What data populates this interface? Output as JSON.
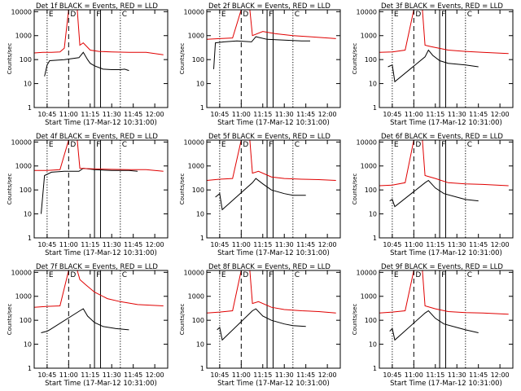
{
  "figure": {
    "ylabel": "Counts/sec",
    "xlabel": "Start Time (17-Mar-12 10:31:00)",
    "title_suffix": "BLACK = Events, RED = LLD",
    "x_ticks": [
      "10:45",
      "11:00",
      "11:15",
      "11:30",
      "11:45",
      "12:00"
    ],
    "y_ticks": [
      "1",
      "10",
      "100",
      "1000",
      "10000"
    ],
    "markers": [
      {
        "label": "E",
        "style": "dotted",
        "t": 10.75
      },
      {
        "label": "D",
        "style": "dashed",
        "t": 11.0
      },
      {
        "label": "F",
        "style": "solid",
        "t": 11.3
      },
      {
        "label": "C",
        "style": "dotted",
        "t": 11.6
      }
    ],
    "colors": {
      "events": "#000000",
      "lld": "#e00000",
      "axis": "#000000"
    }
  },
  "chart_data": [
    {
      "type": "line",
      "title": "Det 1f BLACK = Events, RED = LLD",
      "xlabel": "Start Time (17-Mar-12 10:31:00)",
      "ylabel": "Counts/sec",
      "yscale": "log",
      "ylim": [
        1,
        12000
      ],
      "series": [
        {
          "name": "Events",
          "color": "#000000",
          "points": [
            [
              10.72,
              20
            ],
            [
              10.75,
              60
            ],
            [
              10.78,
              90
            ],
            [
              10.95,
              100
            ],
            [
              11.12,
              120
            ],
            [
              11.17,
              200
            ],
            [
              11.22,
              100
            ],
            [
              11.25,
              70
            ],
            [
              11.3,
              55
            ],
            [
              11.4,
              40
            ],
            [
              11.5,
              38
            ],
            [
              11.6,
              38
            ],
            [
              11.65,
              40
            ],
            [
              11.7,
              35
            ]
          ]
        },
        {
          "name": "LLD",
          "color": "#e00000",
          "points": [
            [
              10.6,
              190
            ],
            [
              10.7,
              200
            ],
            [
              10.8,
              200
            ],
            [
              10.9,
              210
            ],
            [
              10.95,
              300
            ],
            [
              11.0,
              12000
            ],
            [
              11.1,
              12000
            ],
            [
              11.13,
              400
            ],
            [
              11.17,
              500
            ],
            [
              11.25,
              250
            ],
            [
              11.35,
              220
            ],
            [
              11.5,
              210
            ],
            [
              11.7,
              200
            ],
            [
              11.9,
              200
            ],
            [
              12.1,
              160
            ]
          ]
        }
      ]
    },
    {
      "type": "line",
      "title": "Det 2f BLACK = Events, RED = LLD",
      "xlabel": "Start Time (17-Mar-12 10:31:00)",
      "ylabel": "Counts/sec",
      "yscale": "log",
      "ylim": [
        1,
        12000
      ],
      "series": [
        {
          "name": "Events",
          "color": "#000000",
          "points": [
            [
              10.68,
              40
            ],
            [
              10.7,
              500
            ],
            [
              10.8,
              550
            ],
            [
              10.95,
              600
            ],
            [
              11.12,
              550
            ],
            [
              11.17,
              900
            ],
            [
              11.3,
              700
            ],
            [
              11.5,
              650
            ],
            [
              11.7,
              600
            ],
            [
              11.8,
              600
            ]
          ]
        },
        {
          "name": "LLD",
          "color": "#e00000",
          "points": [
            [
              10.6,
              700
            ],
            [
              10.75,
              750
            ],
            [
              10.9,
              800
            ],
            [
              11.0,
              12000
            ],
            [
              11.1,
              12000
            ],
            [
              11.13,
              1000
            ],
            [
              11.25,
              1500
            ],
            [
              11.4,
              1200
            ],
            [
              11.6,
              1000
            ],
            [
              11.8,
              900
            ],
            [
              12.1,
              750
            ]
          ]
        }
      ]
    },
    {
      "type": "line",
      "title": "Det 3f BLACK = Events, RED = LLD",
      "xlabel": "Start Time (17-Mar-12 10:31:00)",
      "ylabel": "Counts/sec",
      "yscale": "log",
      "ylim": [
        1,
        12000
      ],
      "series": [
        {
          "name": "Events",
          "color": "#000000",
          "points": [
            [
              10.7,
              50
            ],
            [
              10.75,
              60
            ],
            [
              10.78,
              12
            ],
            [
              11.13,
              130
            ],
            [
              11.17,
              250
            ],
            [
              11.22,
              150
            ],
            [
              11.3,
              90
            ],
            [
              11.4,
              70
            ],
            [
              11.6,
              60
            ],
            [
              11.75,
              50
            ]
          ]
        },
        {
          "name": "LLD",
          "color": "#e00000",
          "points": [
            [
              10.6,
              200
            ],
            [
              10.75,
              210
            ],
            [
              10.9,
              250
            ],
            [
              11.0,
              12000
            ],
            [
              11.1,
              12000
            ],
            [
              11.13,
              400
            ],
            [
              11.2,
              350
            ],
            [
              11.4,
              250
            ],
            [
              11.6,
              220
            ],
            [
              11.8,
              200
            ],
            [
              12.1,
              180
            ]
          ]
        }
      ]
    },
    {
      "type": "line",
      "title": "Det 4f BLACK = Events, RED = LLD",
      "xlabel": "Start Time (17-Mar-12 10:31:00)",
      "ylabel": "Counts/sec",
      "yscale": "log",
      "ylim": [
        1,
        12000
      ],
      "series": [
        {
          "name": "Events",
          "color": "#000000",
          "points": [
            [
              10.68,
              10
            ],
            [
              10.72,
              400
            ],
            [
              10.8,
              550
            ],
            [
              10.95,
              600
            ],
            [
              11.12,
              600
            ],
            [
              11.17,
              800
            ],
            [
              11.3,
              700
            ],
            [
              11.5,
              650
            ],
            [
              11.7,
              650
            ],
            [
              11.8,
              600
            ]
          ]
        },
        {
          "name": "LLD",
          "color": "#e00000",
          "points": [
            [
              10.6,
              650
            ],
            [
              10.75,
              650
            ],
            [
              10.9,
              700
            ],
            [
              11.0,
              12000
            ],
            [
              11.1,
              12000
            ],
            [
              11.13,
              800
            ],
            [
              11.3,
              750
            ],
            [
              11.5,
              720
            ],
            [
              11.7,
              700
            ],
            [
              11.9,
              700
            ],
            [
              12.1,
              600
            ]
          ]
        }
      ]
    },
    {
      "type": "line",
      "title": "Det 5f BLACK = Events, RED = LLD",
      "xlabel": "Start Time (17-Mar-12 10:31:00)",
      "ylabel": "Counts/sec",
      "yscale": "log",
      "ylim": [
        1,
        12000
      ],
      "series": [
        {
          "name": "Events",
          "color": "#000000",
          "points": [
            [
              10.7,
              50
            ],
            [
              10.75,
              70
            ],
            [
              10.78,
              15
            ],
            [
              11.13,
              200
            ],
            [
              11.17,
              300
            ],
            [
              11.25,
              180
            ],
            [
              11.35,
              100
            ],
            [
              11.5,
              70
            ],
            [
              11.6,
              60
            ],
            [
              11.75,
              60
            ]
          ]
        },
        {
          "name": "LLD",
          "color": "#e00000",
          "points": [
            [
              10.6,
              250
            ],
            [
              10.75,
              280
            ],
            [
              10.9,
              300
            ],
            [
              11.0,
              12000
            ],
            [
              11.1,
              12000
            ],
            [
              11.13,
              500
            ],
            [
              11.2,
              600
            ],
            [
              11.35,
              350
            ],
            [
              11.5,
              300
            ],
            [
              11.7,
              280
            ],
            [
              11.9,
              270
            ],
            [
              12.1,
              250
            ]
          ]
        }
      ]
    },
    {
      "type": "line",
      "title": "Det 6f BLACK = Events, RED = LLD",
      "xlabel": "Start Time (17-Mar-12 10:31:00)",
      "ylabel": "Counts/sec",
      "yscale": "log",
      "ylim": [
        1,
        12000
      ],
      "series": [
        {
          "name": "Events",
          "color": "#000000",
          "points": [
            [
              10.72,
              35
            ],
            [
              10.75,
              40
            ],
            [
              10.78,
              20
            ],
            [
              11.13,
              200
            ],
            [
              11.17,
              250
            ],
            [
              11.25,
              120
            ],
            [
              11.35,
              70
            ],
            [
              11.5,
              50
            ],
            [
              11.6,
              40
            ],
            [
              11.75,
              35
            ]
          ]
        },
        {
          "name": "LLD",
          "color": "#e00000",
          "points": [
            [
              10.6,
              150
            ],
            [
              10.75,
              160
            ],
            [
              10.9,
              200
            ],
            [
              11.0,
              12000
            ],
            [
              11.1,
              12000
            ],
            [
              11.13,
              400
            ],
            [
              11.25,
              300
            ],
            [
              11.4,
              200
            ],
            [
              11.6,
              180
            ],
            [
              11.8,
              170
            ],
            [
              12.1,
              150
            ]
          ]
        }
      ]
    },
    {
      "type": "line",
      "title": "Det 7f BLACK = Events, RED = LLD",
      "xlabel": "Start Time (17-Mar-12 10:31:00)",
      "ylabel": "Counts/sec",
      "yscale": "log",
      "ylim": [
        1,
        12000
      ],
      "series": [
        {
          "name": "Events",
          "color": "#000000",
          "points": [
            [
              10.68,
              30
            ],
            [
              10.75,
              35
            ],
            [
              10.78,
              40
            ],
            [
              11.13,
              250
            ],
            [
              11.17,
              300
            ],
            [
              11.22,
              150
            ],
            [
              11.3,
              80
            ],
            [
              11.4,
              55
            ],
            [
              11.55,
              45
            ],
            [
              11.7,
              40
            ]
          ]
        },
        {
          "name": "LLD",
          "color": "#e00000",
          "points": [
            [
              10.6,
              350
            ],
            [
              10.75,
              380
            ],
            [
              10.9,
              400
            ],
            [
              11.0,
              12000
            ],
            [
              11.1,
              12000
            ],
            [
              11.13,
              5000
            ],
            [
              11.2,
              3000
            ],
            [
              11.3,
              1500
            ],
            [
              11.45,
              800
            ],
            [
              11.6,
              600
            ],
            [
              11.8,
              450
            ],
            [
              12.1,
              400
            ]
          ]
        }
      ]
    },
    {
      "type": "line",
      "title": "Det 8f BLACK = Events, RED = LLD",
      "xlabel": "Start Time (17-Mar-12 10:31:00)",
      "ylabel": "Counts/sec",
      "yscale": "log",
      "ylim": [
        1,
        12000
      ],
      "series": [
        {
          "name": "Events",
          "color": "#000000",
          "points": [
            [
              10.72,
              40
            ],
            [
              10.75,
              50
            ],
            [
              10.78,
              15
            ],
            [
              11.13,
              250
            ],
            [
              11.17,
              300
            ],
            [
              11.25,
              150
            ],
            [
              11.35,
              100
            ],
            [
              11.5,
              70
            ],
            [
              11.6,
              60
            ],
            [
              11.75,
              55
            ]
          ]
        },
        {
          "name": "LLD",
          "color": "#e00000",
          "points": [
            [
              10.6,
              200
            ],
            [
              10.75,
              220
            ],
            [
              10.9,
              250
            ],
            [
              11.0,
              12000
            ],
            [
              11.1,
              12000
            ],
            [
              11.13,
              500
            ],
            [
              11.2,
              600
            ],
            [
              11.35,
              350
            ],
            [
              11.5,
              280
            ],
            [
              11.7,
              250
            ],
            [
              11.9,
              230
            ],
            [
              12.1,
              200
            ]
          ]
        }
      ]
    },
    {
      "type": "line",
      "title": "Det 9f BLACK = Events, RED = LLD",
      "xlabel": "Start Time (17-Mar-12 10:31:00)",
      "ylabel": "Counts/sec",
      "yscale": "log",
      "ylim": [
        1,
        12000
      ],
      "series": [
        {
          "name": "Events",
          "color": "#000000",
          "points": [
            [
              10.72,
              35
            ],
            [
              10.75,
              45
            ],
            [
              10.78,
              15
            ],
            [
              11.13,
              200
            ],
            [
              11.17,
              250
            ],
            [
              11.25,
              120
            ],
            [
              11.35,
              70
            ],
            [
              11.5,
              50
            ],
            [
              11.6,
              40
            ],
            [
              11.75,
              30
            ]
          ]
        },
        {
          "name": "LLD",
          "color": "#e00000",
          "points": [
            [
              10.6,
              200
            ],
            [
              10.75,
              220
            ],
            [
              10.9,
              250
            ],
            [
              11.0,
              12000
            ],
            [
              11.1,
              12000
            ],
            [
              11.13,
              400
            ],
            [
              11.25,
              300
            ],
            [
              11.4,
              230
            ],
            [
              11.6,
              210
            ],
            [
              11.8,
              200
            ],
            [
              12.1,
              180
            ]
          ]
        }
      ]
    }
  ]
}
